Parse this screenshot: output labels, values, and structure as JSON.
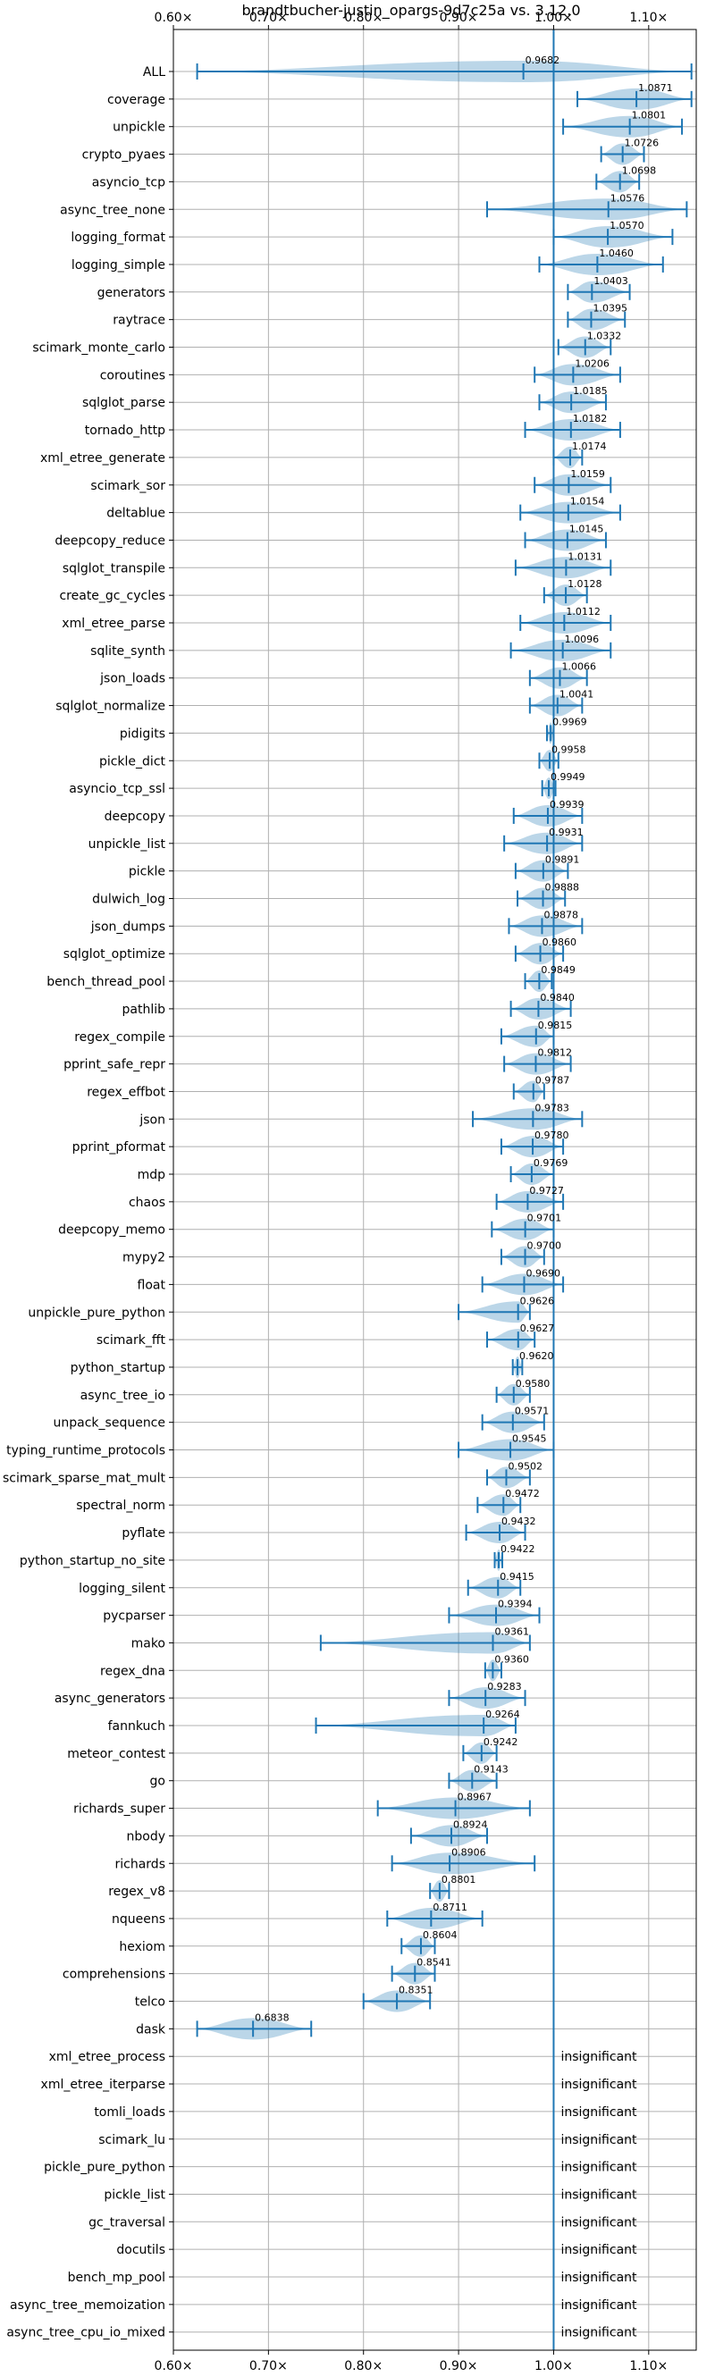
{
  "chart_data": {
    "type": "violin",
    "title": "brandtbucher-justin_opargs-9d7c25a vs. 3.12.0",
    "xlim": [
      0.6,
      1.15
    ],
    "xticks": [
      0.6,
      0.7,
      0.8,
      0.9,
      1.0,
      1.1
    ],
    "xtick_labels": [
      "0.60×",
      "0.70×",
      "0.80×",
      "0.90×",
      "1.00×",
      "1.10×"
    ],
    "reference_line": 1.0,
    "grid": true,
    "insignificant_label": "insignificant",
    "benchmarks": [
      {
        "name": "ALL",
        "value": 0.9682,
        "value_label": "0.9682",
        "min": 0.625,
        "max": 1.145
      },
      {
        "name": "coverage",
        "value": 1.0871,
        "value_label": "1.0871",
        "min": 1.025,
        "max": 1.145
      },
      {
        "name": "unpickle",
        "value": 1.0801,
        "value_label": "1.0801",
        "min": 1.01,
        "max": 1.135
      },
      {
        "name": "crypto_pyaes",
        "value": 1.0726,
        "value_label": "1.0726",
        "min": 1.05,
        "max": 1.095
      },
      {
        "name": "asyncio_tcp",
        "value": 1.0698,
        "value_label": "1.0698",
        "min": 1.045,
        "max": 1.09
      },
      {
        "name": "async_tree_none",
        "value": 1.0576,
        "value_label": "1.0576",
        "min": 0.93,
        "max": 1.14
      },
      {
        "name": "logging_format",
        "value": 1.057,
        "value_label": "1.0570",
        "min": 1.0,
        "max": 1.125
      },
      {
        "name": "logging_simple",
        "value": 1.046,
        "value_label": "1.0460",
        "min": 0.985,
        "max": 1.115
      },
      {
        "name": "generators",
        "value": 1.0403,
        "value_label": "1.0403",
        "min": 1.015,
        "max": 1.08
      },
      {
        "name": "raytrace",
        "value": 1.0395,
        "value_label": "1.0395",
        "min": 1.015,
        "max": 1.075
      },
      {
        "name": "scimark_monte_carlo",
        "value": 1.0332,
        "value_label": "1.0332",
        "min": 1.005,
        "max": 1.06
      },
      {
        "name": "coroutines",
        "value": 1.0206,
        "value_label": "1.0206",
        "min": 0.98,
        "max": 1.07
      },
      {
        "name": "sqlglot_parse",
        "value": 1.0185,
        "value_label": "1.0185",
        "min": 0.985,
        "max": 1.055
      },
      {
        "name": "tornado_http",
        "value": 1.0182,
        "value_label": "1.0182",
        "min": 0.97,
        "max": 1.07
      },
      {
        "name": "xml_etree_generate",
        "value": 1.0174,
        "value_label": "1.0174",
        "min": 1.0,
        "max": 1.03
      },
      {
        "name": "scimark_sor",
        "value": 1.0159,
        "value_label": "1.0159",
        "min": 0.98,
        "max": 1.06
      },
      {
        "name": "deltablue",
        "value": 1.0154,
        "value_label": "1.0154",
        "min": 0.965,
        "max": 1.07
      },
      {
        "name": "deepcopy_reduce",
        "value": 1.0145,
        "value_label": "1.0145",
        "min": 0.97,
        "max": 1.055
      },
      {
        "name": "sqlglot_transpile",
        "value": 1.0131,
        "value_label": "1.0131",
        "min": 0.96,
        "max": 1.06
      },
      {
        "name": "create_gc_cycles",
        "value": 1.0128,
        "value_label": "1.0128",
        "min": 0.99,
        "max": 1.035
      },
      {
        "name": "xml_etree_parse",
        "value": 1.0112,
        "value_label": "1.0112",
        "min": 0.965,
        "max": 1.06
      },
      {
        "name": "sqlite_synth",
        "value": 1.0096,
        "value_label": "1.0096",
        "min": 0.955,
        "max": 1.06
      },
      {
        "name": "json_loads",
        "value": 1.0066,
        "value_label": "1.0066",
        "min": 0.975,
        "max": 1.035
      },
      {
        "name": "sqlglot_normalize",
        "value": 1.0041,
        "value_label": "1.0041",
        "min": 0.975,
        "max": 1.03
      },
      {
        "name": "pidigits",
        "value": 0.9969,
        "value_label": "0.9969",
        "min": 0.993,
        "max": 1.0
      },
      {
        "name": "pickle_dict",
        "value": 0.9958,
        "value_label": "0.9958",
        "min": 0.985,
        "max": 1.005
      },
      {
        "name": "asyncio_tcp_ssl",
        "value": 0.9949,
        "value_label": "0.9949",
        "min": 0.988,
        "max": 1.002
      },
      {
        "name": "deepcopy",
        "value": 0.9939,
        "value_label": "0.9939",
        "min": 0.958,
        "max": 1.03
      },
      {
        "name": "unpickle_list",
        "value": 0.9931,
        "value_label": "0.9931",
        "min": 0.948,
        "max": 1.03
      },
      {
        "name": "pickle",
        "value": 0.9891,
        "value_label": "0.9891",
        "min": 0.96,
        "max": 1.015
      },
      {
        "name": "dulwich_log",
        "value": 0.9888,
        "value_label": "0.9888",
        "min": 0.962,
        "max": 1.012
      },
      {
        "name": "json_dumps",
        "value": 0.9878,
        "value_label": "0.9878",
        "min": 0.953,
        "max": 1.03
      },
      {
        "name": "sqlglot_optimize",
        "value": 0.986,
        "value_label": "0.9860",
        "min": 0.96,
        "max": 1.01
      },
      {
        "name": "bench_thread_pool",
        "value": 0.9849,
        "value_label": "0.9849",
        "min": 0.97,
        "max": 0.998
      },
      {
        "name": "pathlib",
        "value": 0.984,
        "value_label": "0.9840",
        "min": 0.955,
        "max": 1.018
      },
      {
        "name": "regex_compile",
        "value": 0.9815,
        "value_label": "0.9815",
        "min": 0.945,
        "max": 1.0
      },
      {
        "name": "pprint_safe_repr",
        "value": 0.9812,
        "value_label": "0.9812",
        "min": 0.948,
        "max": 1.018
      },
      {
        "name": "regex_effbot",
        "value": 0.9787,
        "value_label": "0.9787",
        "min": 0.958,
        "max": 0.99
      },
      {
        "name": "json",
        "value": 0.9783,
        "value_label": "0.9783",
        "min": 0.915,
        "max": 1.03
      },
      {
        "name": "pprint_pformat",
        "value": 0.978,
        "value_label": "0.9780",
        "min": 0.945,
        "max": 1.01
      },
      {
        "name": "mdp",
        "value": 0.9769,
        "value_label": "0.9769",
        "min": 0.955,
        "max": 1.0
      },
      {
        "name": "chaos",
        "value": 0.9727,
        "value_label": "0.9727",
        "min": 0.94,
        "max": 1.01
      },
      {
        "name": "deepcopy_memo",
        "value": 0.9701,
        "value_label": "0.9701",
        "min": 0.935,
        "max": 1.0
      },
      {
        "name": "mypy2",
        "value": 0.97,
        "value_label": "0.9700",
        "min": 0.945,
        "max": 0.99
      },
      {
        "name": "float",
        "value": 0.969,
        "value_label": "0.9690",
        "min": 0.925,
        "max": 1.01
      },
      {
        "name": "unpickle_pure_python",
        "value": 0.9626,
        "value_label": "0.9626",
        "min": 0.9,
        "max": 0.975
      },
      {
        "name": "scimark_fft",
        "value": 0.9627,
        "value_label": "0.9627",
        "min": 0.93,
        "max": 0.98
      },
      {
        "name": "python_startup",
        "value": 0.962,
        "value_label": "0.9620",
        "min": 0.957,
        "max": 0.967
      },
      {
        "name": "async_tree_io",
        "value": 0.958,
        "value_label": "0.9580",
        "min": 0.94,
        "max": 0.975
      },
      {
        "name": "unpack_sequence",
        "value": 0.9571,
        "value_label": "0.9571",
        "min": 0.925,
        "max": 0.99
      },
      {
        "name": "typing_runtime_protocols",
        "value": 0.9545,
        "value_label": "0.9545",
        "min": 0.9,
        "max": 1.0
      },
      {
        "name": "scimark_sparse_mat_mult",
        "value": 0.9502,
        "value_label": "0.9502",
        "min": 0.93,
        "max": 0.975
      },
      {
        "name": "spectral_norm",
        "value": 0.9472,
        "value_label": "0.9472",
        "min": 0.92,
        "max": 0.965
      },
      {
        "name": "pyflate",
        "value": 0.9432,
        "value_label": "0.9432",
        "min": 0.908,
        "max": 0.97
      },
      {
        "name": "python_startup_no_site",
        "value": 0.9422,
        "value_label": "0.9422",
        "min": 0.938,
        "max": 0.946
      },
      {
        "name": "logging_silent",
        "value": 0.9415,
        "value_label": "0.9415",
        "min": 0.91,
        "max": 0.965
      },
      {
        "name": "pycparser",
        "value": 0.9394,
        "value_label": "0.9394",
        "min": 0.89,
        "max": 0.985
      },
      {
        "name": "mako",
        "value": 0.9361,
        "value_label": "0.9361",
        "min": 0.755,
        "max": 0.975
      },
      {
        "name": "regex_dna",
        "value": 0.936,
        "value_label": "0.9360",
        "min": 0.928,
        "max": 0.945
      },
      {
        "name": "async_generators",
        "value": 0.9283,
        "value_label": "0.9283",
        "min": 0.89,
        "max": 0.97
      },
      {
        "name": "fannkuch",
        "value": 0.9264,
        "value_label": "0.9264",
        "min": 0.75,
        "max": 0.96
      },
      {
        "name": "meteor_contest",
        "value": 0.9242,
        "value_label": "0.9242",
        "min": 0.905,
        "max": 0.94
      },
      {
        "name": "go",
        "value": 0.9143,
        "value_label": "0.9143",
        "min": 0.89,
        "max": 0.94
      },
      {
        "name": "richards_super",
        "value": 0.8967,
        "value_label": "0.8967",
        "min": 0.815,
        "max": 0.975
      },
      {
        "name": "nbody",
        "value": 0.8924,
        "value_label": "0.8924",
        "min": 0.85,
        "max": 0.93
      },
      {
        "name": "richards",
        "value": 0.8906,
        "value_label": "0.8906",
        "min": 0.83,
        "max": 0.98
      },
      {
        "name": "regex_v8",
        "value": 0.8801,
        "value_label": "0.8801",
        "min": 0.87,
        "max": 0.89
      },
      {
        "name": "nqueens",
        "value": 0.8711,
        "value_label": "0.8711",
        "min": 0.825,
        "max": 0.925
      },
      {
        "name": "hexiom",
        "value": 0.8604,
        "value_label": "0.8604",
        "min": 0.84,
        "max": 0.875
      },
      {
        "name": "comprehensions",
        "value": 0.8541,
        "value_label": "0.8541",
        "min": 0.83,
        "max": 0.875
      },
      {
        "name": "telco",
        "value": 0.8351,
        "value_label": "0.8351",
        "min": 0.8,
        "max": 0.87
      },
      {
        "name": "dask",
        "value": 0.6838,
        "value_label": "0.6838",
        "min": 0.625,
        "max": 0.745
      },
      {
        "name": "xml_etree_process",
        "insignificant": true
      },
      {
        "name": "xml_etree_iterparse",
        "insignificant": true
      },
      {
        "name": "tomli_loads",
        "insignificant": true
      },
      {
        "name": "scimark_lu",
        "insignificant": true
      },
      {
        "name": "pickle_pure_python",
        "insignificant": true
      },
      {
        "name": "pickle_list",
        "insignificant": true
      },
      {
        "name": "gc_traversal",
        "insignificant": true
      },
      {
        "name": "docutils",
        "insignificant": true
      },
      {
        "name": "bench_mp_pool",
        "insignificant": true
      },
      {
        "name": "async_tree_memoization",
        "insignificant": true
      },
      {
        "name": "async_tree_cpu_io_mixed",
        "insignificant": true
      }
    ]
  }
}
